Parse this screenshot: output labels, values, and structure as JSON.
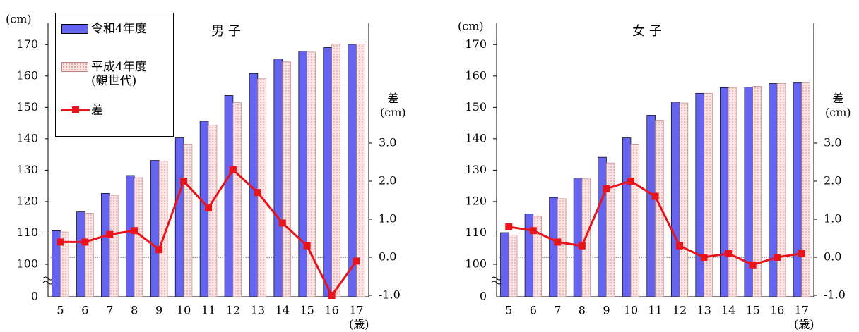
{
  "chart_data": [
    {
      "type": "bar",
      "title": "男 子",
      "y_label": "(cm)",
      "y2_label": "差\n(cm)",
      "x_label": "(歳)",
      "categories": [
        "5",
        "6",
        "7",
        "8",
        "9",
        "10",
        "11",
        "12",
        "13",
        "14",
        "15",
        "16",
        "17"
      ],
      "series": [
        {
          "name": "令和4年度",
          "color": "#6464f0",
          "values": [
            110.7,
            116.7,
            122.6,
            128.3,
            133.1,
            140.3,
            145.6,
            153.8,
            160.8,
            165.4,
            167.9,
            169.1,
            170.1
          ]
        },
        {
          "name": "平成4年度\n(親世代)",
          "color": "#f8d2d2",
          "values": [
            110.3,
            116.3,
            122.0,
            127.6,
            132.9,
            138.3,
            144.3,
            151.5,
            159.1,
            164.5,
            167.6,
            170.1,
            170.2
          ]
        },
        {
          "name": "差",
          "type": "line",
          "axis": "y2",
          "color": "#e8141c",
          "values": [
            0.4,
            0.4,
            0.6,
            0.7,
            0.2,
            2.0,
            1.3,
            2.3,
            1.7,
            0.9,
            0.3,
            -1.0,
            -0.1
          ]
        }
      ],
      "ylim": [
        0,
        175
      ],
      "yticks": [
        0,
        100,
        110,
        120,
        130,
        140,
        150,
        160,
        170
      ],
      "axis_break": [
        0,
        100
      ],
      "y2lim": [
        -1,
        6
      ],
      "y2ticks": [
        {
          "value": -1,
          "label": "-1.0"
        },
        {
          "value": 0,
          "label": "0.0"
        },
        {
          "value": 1,
          "label": "1.0"
        },
        {
          "value": 2,
          "label": "2.0"
        },
        {
          "value": 3,
          "label": "3.0"
        }
      ],
      "legend": "upper left"
    },
    {
      "type": "bar",
      "title": "女 子",
      "y_label": "(cm)",
      "y2_label": "差\n(cm)",
      "x_label": "(歳)",
      "categories": [
        "5",
        "6",
        "7",
        "8",
        "9",
        "10",
        "11",
        "12",
        "13",
        "14",
        "15",
        "16",
        "17"
      ],
      "series": [
        {
          "name": "令和4年度",
          "color": "#6464f0",
          "values": [
            110.1,
            116.0,
            121.3,
            127.5,
            134.1,
            140.3,
            147.5,
            151.7,
            154.5,
            156.3,
            156.5,
            157.6,
            157.9
          ]
        },
        {
          "name": "平成4年度\n(親世代)",
          "color": "#f8d2d2",
          "values": [
            109.3,
            115.3,
            120.9,
            127.2,
            132.3,
            138.3,
            145.9,
            151.4,
            154.5,
            156.2,
            156.7,
            157.6,
            157.8
          ]
        },
        {
          "name": "差",
          "type": "line",
          "axis": "y2",
          "color": "#e8141c",
          "values": [
            0.8,
            0.7,
            0.4,
            0.3,
            1.8,
            2.0,
            1.6,
            0.3,
            0.0,
            0.1,
            -0.2,
            0.0,
            0.1
          ]
        }
      ],
      "ylim": [
        0,
        175
      ],
      "yticks": [
        0,
        100,
        110,
        120,
        130,
        140,
        150,
        160,
        170
      ],
      "axis_break": [
        0,
        100
      ],
      "y2lim": [
        -1,
        6
      ],
      "y2ticks": [
        {
          "value": -1,
          "label": "-1.0"
        },
        {
          "value": 0,
          "label": "0.0"
        },
        {
          "value": 1,
          "label": "1.0"
        },
        {
          "value": 2,
          "label": "2.0"
        },
        {
          "value": 3,
          "label": "3.0"
        }
      ]
    }
  ]
}
